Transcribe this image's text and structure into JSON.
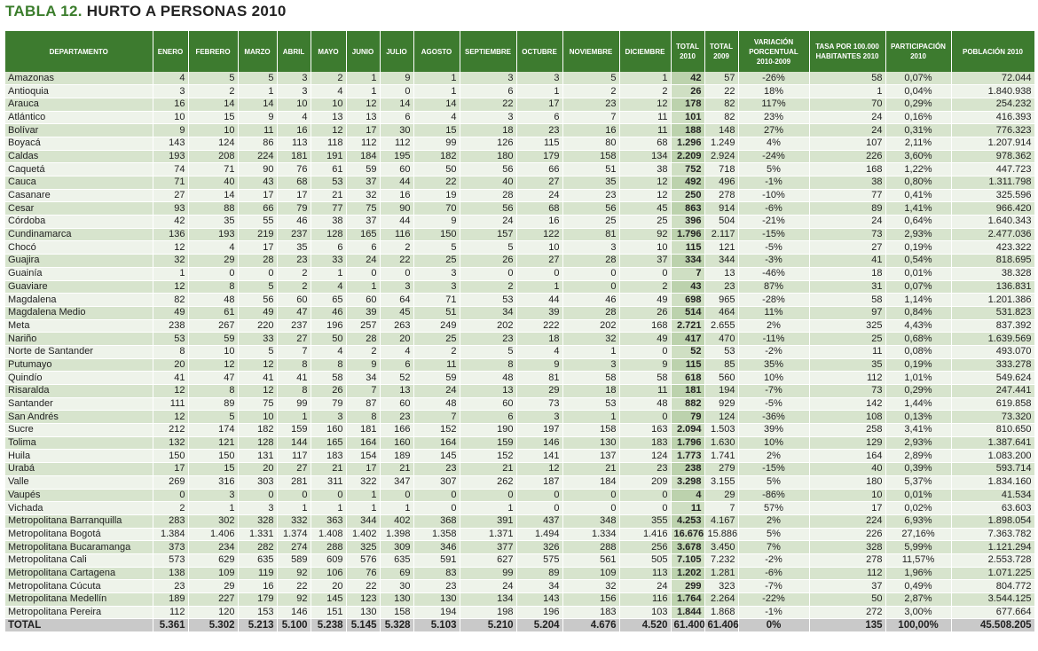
{
  "title": {
    "number": "TABLA 12.",
    "text": "HURTO A PERSONAS 2010"
  },
  "headers": [
    "DEPARTAMENTO",
    "ENERO",
    "FEBRERO",
    "MARZO",
    "ABRIL",
    "MAYO",
    "JUNIO",
    "JULIO",
    "AGOSTO",
    "SEPTIEMBRE",
    "OCTUBRE",
    "NOVIEMBRE",
    "DICIEMBRE",
    "TOTAL 2010",
    "TOTAL 2009",
    "VARIACIÓN PORCENTUAL 2010-2009",
    "TASA POR 100.000 HABITANTES 2010",
    "PARTICIPACIÓN 2010",
    "POBLACIÓN 2010"
  ],
  "rows": [
    [
      "Amazonas",
      "4",
      "5",
      "5",
      "3",
      "2",
      "1",
      "9",
      "1",
      "3",
      "3",
      "5",
      "1",
      "42",
      "57",
      "-26%",
      "58",
      "0,07%",
      "72.044"
    ],
    [
      "Antioquia",
      "3",
      "2",
      "1",
      "3",
      "4",
      "1",
      "0",
      "1",
      "6",
      "1",
      "2",
      "2",
      "26",
      "22",
      "18%",
      "1",
      "0,04%",
      "1.840.938"
    ],
    [
      "Arauca",
      "16",
      "14",
      "14",
      "10",
      "10",
      "12",
      "14",
      "14",
      "22",
      "17",
      "23",
      "12",
      "178",
      "82",
      "117%",
      "70",
      "0,29%",
      "254.232"
    ],
    [
      "Atlántico",
      "10",
      "15",
      "9",
      "4",
      "13",
      "13",
      "6",
      "4",
      "3",
      "6",
      "7",
      "11",
      "101",
      "82",
      "23%",
      "24",
      "0,16%",
      "416.393"
    ],
    [
      "Bolívar",
      "9",
      "10",
      "11",
      "16",
      "12",
      "17",
      "30",
      "15",
      "18",
      "23",
      "16",
      "11",
      "188",
      "148",
      "27%",
      "24",
      "0,31%",
      "776.323"
    ],
    [
      "Boyacá",
      "143",
      "124",
      "86",
      "113",
      "118",
      "112",
      "112",
      "99",
      "126",
      "115",
      "80",
      "68",
      "1.296",
      "1.249",
      "4%",
      "107",
      "2,11%",
      "1.207.914"
    ],
    [
      "Caldas",
      "193",
      "208",
      "224",
      "181",
      "191",
      "184",
      "195",
      "182",
      "180",
      "179",
      "158",
      "134",
      "2.209",
      "2.924",
      "-24%",
      "226",
      "3,60%",
      "978.362"
    ],
    [
      "Caquetá",
      "74",
      "71",
      "90",
      "76",
      "61",
      "59",
      "60",
      "50",
      "56",
      "66",
      "51",
      "38",
      "752",
      "718",
      "5%",
      "168",
      "1,22%",
      "447.723"
    ],
    [
      "Cauca",
      "71",
      "40",
      "43",
      "68",
      "53",
      "37",
      "44",
      "22",
      "40",
      "27",
      "35",
      "12",
      "492",
      "496",
      "-1%",
      "38",
      "0,80%",
      "1.311.798"
    ],
    [
      "Casanare",
      "27",
      "14",
      "17",
      "17",
      "21",
      "32",
      "16",
      "19",
      "28",
      "24",
      "23",
      "12",
      "250",
      "278",
      "-10%",
      "77",
      "0,41%",
      "325.596"
    ],
    [
      "Cesar",
      "93",
      "88",
      "66",
      "79",
      "77",
      "75",
      "90",
      "70",
      "56",
      "68",
      "56",
      "45",
      "863",
      "914",
      "-6%",
      "89",
      "1,41%",
      "966.420"
    ],
    [
      "Córdoba",
      "42",
      "35",
      "55",
      "46",
      "38",
      "37",
      "44",
      "9",
      "24",
      "16",
      "25",
      "25",
      "396",
      "504",
      "-21%",
      "24",
      "0,64%",
      "1.640.343"
    ],
    [
      "Cundinamarca",
      "136",
      "193",
      "219",
      "237",
      "128",
      "165",
      "116",
      "150",
      "157",
      "122",
      "81",
      "92",
      "1.796",
      "2.117",
      "-15%",
      "73",
      "2,93%",
      "2.477.036"
    ],
    [
      "Chocó",
      "12",
      "4",
      "17",
      "35",
      "6",
      "6",
      "2",
      "5",
      "5",
      "10",
      "3",
      "10",
      "115",
      "121",
      "-5%",
      "27",
      "0,19%",
      "423.322"
    ],
    [
      "Guajira",
      "32",
      "29",
      "28",
      "23",
      "33",
      "24",
      "22",
      "25",
      "26",
      "27",
      "28",
      "37",
      "334",
      "344",
      "-3%",
      "41",
      "0,54%",
      "818.695"
    ],
    [
      "Guainía",
      "1",
      "0",
      "0",
      "2",
      "1",
      "0",
      "0",
      "3",
      "0",
      "0",
      "0",
      "0",
      "7",
      "13",
      "-46%",
      "18",
      "0,01%",
      "38.328"
    ],
    [
      "Guaviare",
      "12",
      "8",
      "5",
      "2",
      "4",
      "1",
      "3",
      "3",
      "2",
      "1",
      "0",
      "2",
      "43",
      "23",
      "87%",
      "31",
      "0,07%",
      "136.831"
    ],
    [
      "Magdalena",
      "82",
      "48",
      "56",
      "60",
      "65",
      "60",
      "64",
      "71",
      "53",
      "44",
      "46",
      "49",
      "698",
      "965",
      "-28%",
      "58",
      "1,14%",
      "1.201.386"
    ],
    [
      "Magdalena Medio",
      "49",
      "61",
      "49",
      "47",
      "46",
      "39",
      "45",
      "51",
      "34",
      "39",
      "28",
      "26",
      "514",
      "464",
      "11%",
      "97",
      "0,84%",
      "531.823"
    ],
    [
      "Meta",
      "238",
      "267",
      "220",
      "237",
      "196",
      "257",
      "263",
      "249",
      "202",
      "222",
      "202",
      "168",
      "2.721",
      "2.655",
      "2%",
      "325",
      "4,43%",
      "837.392"
    ],
    [
      "Nariño",
      "53",
      "59",
      "33",
      "27",
      "50",
      "28",
      "20",
      "25",
      "23",
      "18",
      "32",
      "49",
      "417",
      "470",
      "-11%",
      "25",
      "0,68%",
      "1.639.569"
    ],
    [
      "Norte de Santander",
      "8",
      "10",
      "5",
      "7",
      "4",
      "2",
      "4",
      "2",
      "5",
      "4",
      "1",
      "0",
      "52",
      "53",
      "-2%",
      "11",
      "0,08%",
      "493.070"
    ],
    [
      "Putumayo",
      "20",
      "12",
      "12",
      "8",
      "8",
      "9",
      "6",
      "11",
      "8",
      "9",
      "3",
      "9",
      "115",
      "85",
      "35%",
      "35",
      "0,19%",
      "333.278"
    ],
    [
      "Quindío",
      "41",
      "47",
      "41",
      "41",
      "58",
      "34",
      "52",
      "59",
      "48",
      "81",
      "58",
      "58",
      "618",
      "560",
      "10%",
      "112",
      "1,01%",
      "549.624"
    ],
    [
      "Risaralda",
      "12",
      "8",
      "12",
      "8",
      "26",
      "7",
      "13",
      "24",
      "13",
      "29",
      "18",
      "11",
      "181",
      "194",
      "-7%",
      "73",
      "0,29%",
      "247.441"
    ],
    [
      "Santander",
      "111",
      "89",
      "75",
      "99",
      "79",
      "87",
      "60",
      "48",
      "60",
      "73",
      "53",
      "48",
      "882",
      "929",
      "-5%",
      "142",
      "1,44%",
      "619.858"
    ],
    [
      "San Andrés",
      "12",
      "5",
      "10",
      "1",
      "3",
      "8",
      "23",
      "7",
      "6",
      "3",
      "1",
      "0",
      "79",
      "124",
      "-36%",
      "108",
      "0,13%",
      "73.320"
    ],
    [
      "Sucre",
      "212",
      "174",
      "182",
      "159",
      "160",
      "181",
      "166",
      "152",
      "190",
      "197",
      "158",
      "163",
      "2.094",
      "1.503",
      "39%",
      "258",
      "3,41%",
      "810.650"
    ],
    [
      "Tolima",
      "132",
      "121",
      "128",
      "144",
      "165",
      "164",
      "160",
      "164",
      "159",
      "146",
      "130",
      "183",
      "1.796",
      "1.630",
      "10%",
      "129",
      "2,93%",
      "1.387.641"
    ],
    [
      "Huila",
      "150",
      "150",
      "131",
      "117",
      "183",
      "154",
      "189",
      "145",
      "152",
      "141",
      "137",
      "124",
      "1.773",
      "1.741",
      "2%",
      "164",
      "2,89%",
      "1.083.200"
    ],
    [
      "Urabá",
      "17",
      "15",
      "20",
      "27",
      "21",
      "17",
      "21",
      "23",
      "21",
      "12",
      "21",
      "23",
      "238",
      "279",
      "-15%",
      "40",
      "0,39%",
      "593.714"
    ],
    [
      "Valle",
      "269",
      "316",
      "303",
      "281",
      "311",
      "322",
      "347",
      "307",
      "262",
      "187",
      "184",
      "209",
      "3.298",
      "3.155",
      "5%",
      "180",
      "5,37%",
      "1.834.160"
    ],
    [
      "Vaupés",
      "0",
      "3",
      "0",
      "0",
      "0",
      "1",
      "0",
      "0",
      "0",
      "0",
      "0",
      "0",
      "4",
      "29",
      "-86%",
      "10",
      "0,01%",
      "41.534"
    ],
    [
      "Vichada",
      "2",
      "1",
      "3",
      "1",
      "1",
      "1",
      "1",
      "0",
      "1",
      "0",
      "0",
      "0",
      "11",
      "7",
      "57%",
      "17",
      "0,02%",
      "63.603"
    ],
    [
      "Metropolitana Barranquilla",
      "283",
      "302",
      "328",
      "332",
      "363",
      "344",
      "402",
      "368",
      "391",
      "437",
      "348",
      "355",
      "4.253",
      "4.167",
      "2%",
      "224",
      "6,93%",
      "1.898.054"
    ],
    [
      "Metropolitana Bogotá",
      "1.384",
      "1.406",
      "1.331",
      "1.374",
      "1.408",
      "1.402",
      "1.398",
      "1.358",
      "1.371",
      "1.494",
      "1.334",
      "1.416",
      "16.676",
      "15.886",
      "5%",
      "226",
      "27,16%",
      "7.363.782"
    ],
    [
      "Metropolitana Bucaramanga",
      "373",
      "234",
      "282",
      "274",
      "288",
      "325",
      "309",
      "346",
      "377",
      "326",
      "288",
      "256",
      "3.678",
      "3.450",
      "7%",
      "328",
      "5,99%",
      "1.121.294"
    ],
    [
      "Metropolitana Cali",
      "573",
      "629",
      "635",
      "589",
      "609",
      "576",
      "635",
      "591",
      "627",
      "575",
      "561",
      "505",
      "7.105",
      "7.232",
      "-2%",
      "278",
      "11,57%",
      "2.553.728"
    ],
    [
      "Metropolitana Cartagena",
      "138",
      "109",
      "119",
      "92",
      "106",
      "76",
      "69",
      "83",
      "99",
      "89",
      "109",
      "113",
      "1.202",
      "1.281",
      "-6%",
      "112",
      "1,96%",
      "1.071.225"
    ],
    [
      "Metropolitana Cúcuta",
      "23",
      "29",
      "16",
      "22",
      "20",
      "22",
      "30",
      "23",
      "24",
      "34",
      "32",
      "24",
      "299",
      "323",
      "-7%",
      "37",
      "0,49%",
      "804.772"
    ],
    [
      "Metropolitana Medellín",
      "189",
      "227",
      "179",
      "92",
      "145",
      "123",
      "130",
      "130",
      "134",
      "143",
      "156",
      "116",
      "1.764",
      "2.264",
      "-22%",
      "50",
      "2,87%",
      "3.544.125"
    ],
    [
      "Metropolitana Pereira",
      "112",
      "120",
      "153",
      "146",
      "151",
      "130",
      "158",
      "194",
      "198",
      "196",
      "183",
      "103",
      "1.844",
      "1.868",
      "-1%",
      "272",
      "3,00%",
      "677.664"
    ]
  ],
  "total": [
    "TOTAL",
    "5.361",
    "5.302",
    "5.213",
    "5.100",
    "5.238",
    "5.145",
    "5.328",
    "5.103",
    "5.210",
    "5.204",
    "4.676",
    "4.520",
    "61.400",
    "61.406",
    "0%",
    "135",
    "100,00%",
    "45.508.205"
  ],
  "colors": {
    "header": "#3d7b2f",
    "row_dark": "#d7e4cd",
    "row_light": "#eef3ea",
    "total_row": "#c9c9c9",
    "title": "#3b7d2c"
  }
}
